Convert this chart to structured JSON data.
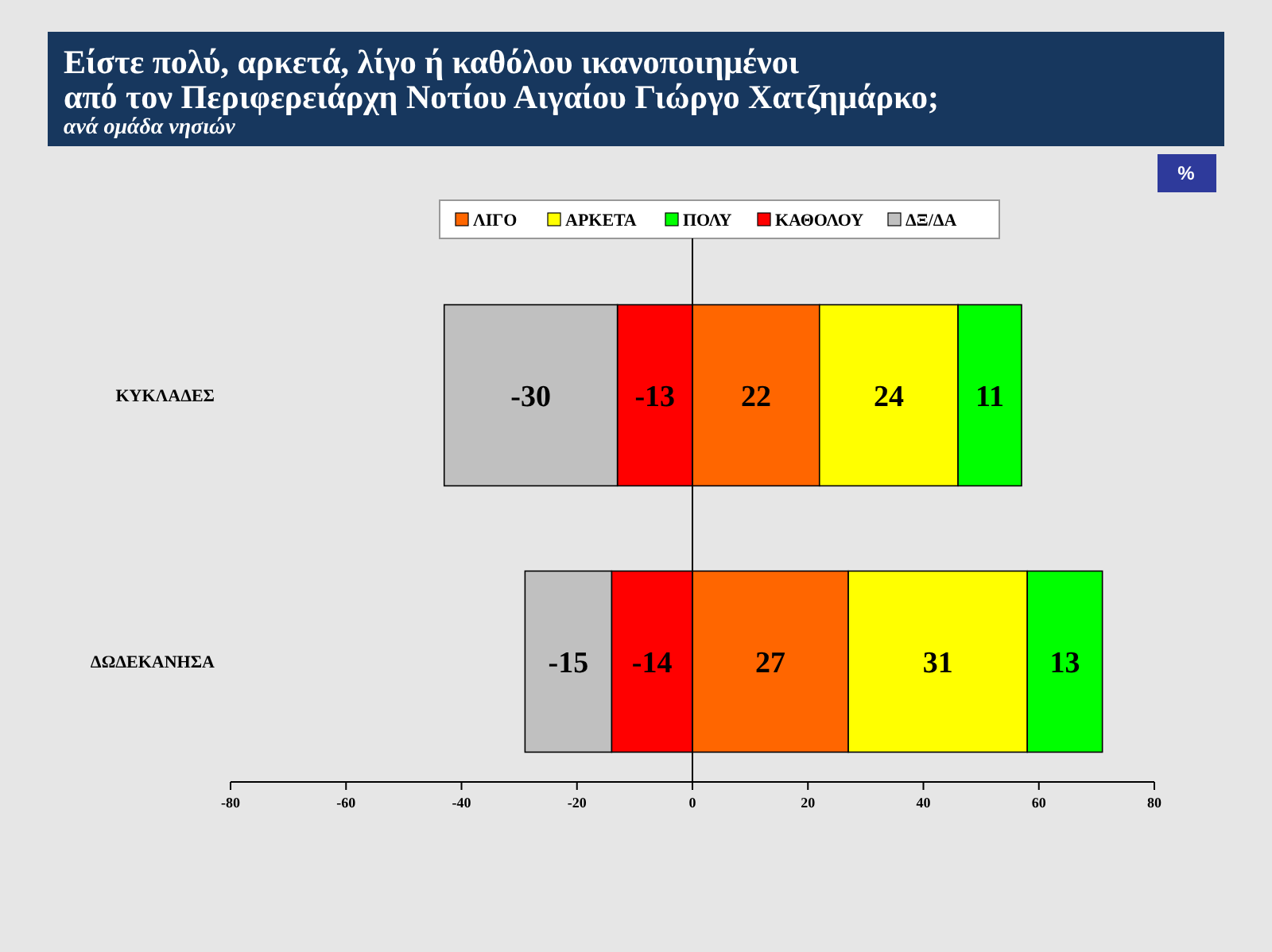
{
  "chart_data": {
    "type": "bar",
    "orientation": "horizontal",
    "stacked": true,
    "title": "Είστε πολύ, αρκετά, λίγο ή καθόλου ικανοποιημένοι\nαπό τον Περιφερειάρχη Νοτίου Αιγαίου Γιώργο Χατζημάρκο;",
    "subtitle": "ανά ομάδα νησιών",
    "annotations": [
      "%"
    ],
    "categories": [
      "ΚΥΚΛΑΔΕΣ",
      "ΔΩΔΕΚΑΝΗΣΑ"
    ],
    "series": [
      {
        "name": "ΛΙΓΟ",
        "color": "#ff6600",
        "values": [
          22,
          27
        ]
      },
      {
        "name": "ΑΡΚΕΤΑ",
        "color": "#ffff00",
        "values": [
          24,
          31
        ]
      },
      {
        "name": "ΠΟΛΥ",
        "color": "#00ff00",
        "values": [
          11,
          13
        ]
      },
      {
        "name": "ΚΑΘΟΛΟΥ",
        "color": "#ff0000",
        "values": [
          -13,
          -14
        ]
      },
      {
        "name": "ΔΞ/ΔΑ",
        "color": "#c0c0c0",
        "values": [
          -30,
          -15
        ]
      }
    ],
    "xlim": [
      -80,
      80
    ],
    "xticks": [
      -80,
      -60,
      -40,
      -20,
      0,
      20,
      40,
      60,
      80
    ],
    "data_labels": true,
    "legend": "top",
    "ref_lines": [
      {
        "axis": "x",
        "value": 0
      }
    ]
  }
}
